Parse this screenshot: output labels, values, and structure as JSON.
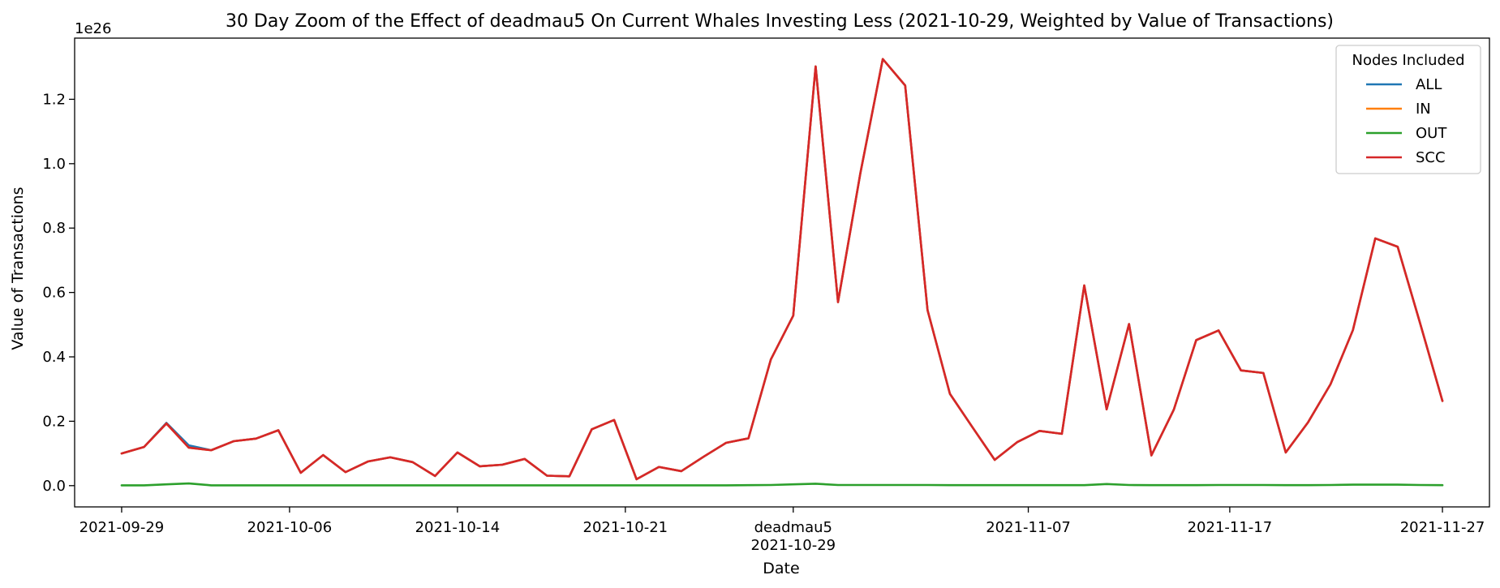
{
  "chart_data": {
    "type": "line",
    "title": "30 Day Zoom of the Effect of deadmau5 On Current Whales Investing Less (2021-10-29, Weighted by Value of Transactions)",
    "xlabel": "Date",
    "ylabel": "Value of Transactions",
    "y_offset_label": "1e26",
    "y_unit_scale": "1e26",
    "ylim": [
      -0.066,
      1.39
    ],
    "yticks": [
      0.0,
      0.2,
      0.4,
      0.6,
      0.8,
      1.0,
      1.2
    ],
    "ytick_labels": [
      "0.0",
      "0.2",
      "0.4",
      "0.6",
      "0.8",
      "1.0",
      "1.2"
    ],
    "xlim": [
      -2.1,
      61.1
    ],
    "x_start_date": "2021-09-29",
    "xticks": [
      {
        "pos": 0,
        "label": "2021-09-29"
      },
      {
        "pos": 7.5,
        "label": "2021-10-06"
      },
      {
        "pos": 15,
        "label": "2021-10-14"
      },
      {
        "pos": 22.5,
        "label": "2021-10-21"
      },
      {
        "pos": 30,
        "label": "2021-10-29",
        "annotation": "deadmau5"
      },
      {
        "pos": 40.5,
        "label": "2021-11-07"
      },
      {
        "pos": 49.5,
        "label": "2021-11-17"
      },
      {
        "pos": 59,
        "label": "2021-11-27"
      }
    ],
    "grid": false,
    "legend": {
      "title": "Nodes Included",
      "placement": "top-right",
      "entries": [
        {
          "name": "ALL",
          "color": "#1f77b4"
        },
        {
          "name": "IN",
          "color": "#ff7f0e"
        },
        {
          "name": "OUT",
          "color": "#2ca02c"
        },
        {
          "name": "SCC",
          "color": "#d62728"
        }
      ]
    },
    "series": [
      {
        "name": "ALL",
        "color": "#1f77b4",
        "values": [
          0.1,
          0.12,
          0.195,
          0.125,
          0.11,
          0.138,
          0.146,
          0.172,
          0.04,
          0.095,
          0.042,
          0.075,
          0.088,
          0.073,
          0.03,
          0.103,
          0.06,
          0.065,
          0.083,
          0.031,
          0.029,
          0.175,
          0.204,
          0.02,
          0.058,
          0.045,
          0.09,
          0.133,
          0.147,
          0.392,
          0.528,
          1.302,
          0.57,
          0.971,
          1.325,
          1.243,
          0.545,
          0.285,
          0.182,
          0.08,
          0.135,
          0.17,
          0.161,
          0.622,
          0.237,
          0.502,
          0.094,
          0.236,
          0.452,
          0.482,
          0.358,
          0.35,
          0.103,
          0.197,
          0.315,
          0.483,
          0.768,
          0.742,
          0.505,
          0.263
        ]
      },
      {
        "name": "IN",
        "color": "#ff7f0e",
        "values": [
          0.1,
          0.12,
          0.193,
          0.118,
          0.11,
          0.138,
          0.146,
          0.172,
          0.04,
          0.095,
          0.042,
          0.075,
          0.088,
          0.073,
          0.03,
          0.103,
          0.06,
          0.065,
          0.083,
          0.031,
          0.029,
          0.175,
          0.204,
          0.02,
          0.058,
          0.045,
          0.09,
          0.133,
          0.147,
          0.392,
          0.528,
          1.302,
          0.57,
          0.971,
          1.325,
          1.243,
          0.545,
          0.285,
          0.182,
          0.08,
          0.135,
          0.17,
          0.161,
          0.622,
          0.237,
          0.502,
          0.094,
          0.236,
          0.452,
          0.482,
          0.358,
          0.35,
          0.103,
          0.197,
          0.315,
          0.483,
          0.768,
          0.742,
          0.505,
          0.263
        ]
      },
      {
        "name": "OUT",
        "color": "#2ca02c",
        "values": [
          0.001,
          0.001,
          0.004,
          0.007,
          0.001,
          0.001,
          0.0008,
          0.0008,
          0.001,
          0.001,
          0.0008,
          0.0008,
          0.0008,
          0.001,
          0.001,
          0.001,
          0.0008,
          0.0008,
          0.001,
          0.001,
          0.0008,
          0.0008,
          0.0008,
          0.0008,
          0.001,
          0.001,
          0.001,
          0.001,
          0.0015,
          0.002,
          0.004,
          0.006,
          0.002,
          0.002,
          0.002,
          0.002,
          0.002,
          0.0015,
          0.0015,
          0.0015,
          0.0015,
          0.0015,
          0.0015,
          0.0015,
          0.005,
          0.002,
          0.0015,
          0.0015,
          0.0015,
          0.002,
          0.002,
          0.002,
          0.0015,
          0.0015,
          0.002,
          0.003,
          0.003,
          0.003,
          0.002,
          0.0015
        ]
      },
      {
        "name": "SCC",
        "color": "#d62728",
        "values": [
          0.1,
          0.12,
          0.193,
          0.118,
          0.11,
          0.138,
          0.146,
          0.172,
          0.04,
          0.095,
          0.042,
          0.075,
          0.088,
          0.073,
          0.03,
          0.103,
          0.06,
          0.065,
          0.083,
          0.031,
          0.029,
          0.175,
          0.204,
          0.02,
          0.058,
          0.045,
          0.09,
          0.133,
          0.147,
          0.392,
          0.528,
          1.302,
          0.57,
          0.971,
          1.325,
          1.243,
          0.545,
          0.285,
          0.182,
          0.08,
          0.135,
          0.17,
          0.161,
          0.622,
          0.237,
          0.502,
          0.094,
          0.236,
          0.452,
          0.482,
          0.358,
          0.35,
          0.103,
          0.197,
          0.315,
          0.483,
          0.768,
          0.742,
          0.505,
          0.263
        ]
      }
    ]
  }
}
